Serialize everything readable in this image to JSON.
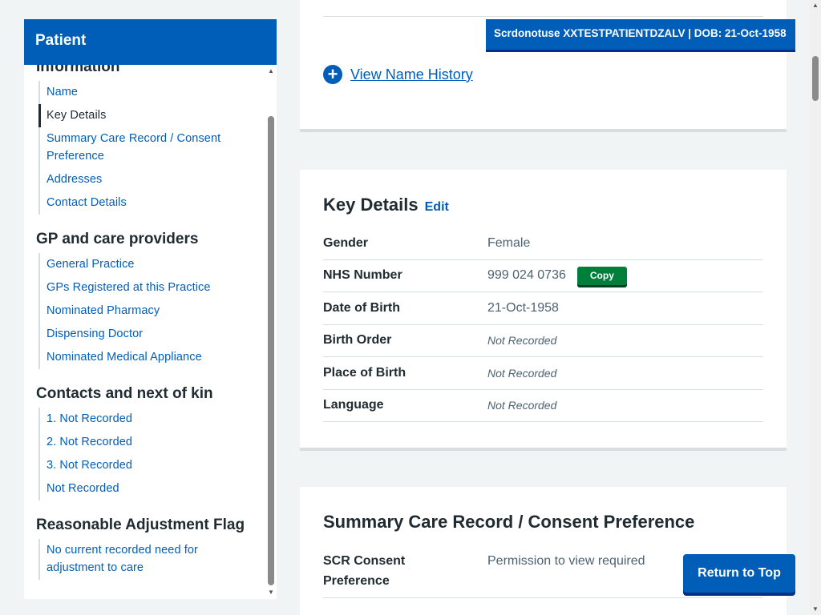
{
  "banner": {
    "text": "Scrdonotuse XXTESTPATIENTDZALV | DOB: 21-Oct-1958"
  },
  "sidebar": {
    "title": "Patient",
    "groups": [
      {
        "title": "Information",
        "items": [
          {
            "label": "Name",
            "active": false
          },
          {
            "label": "Key Details",
            "active": true
          },
          {
            "label": "Summary Care Record / Consent Preference",
            "active": false
          },
          {
            "label": "Addresses",
            "active": false
          },
          {
            "label": "Contact Details",
            "active": false
          }
        ]
      },
      {
        "title": "GP and care providers",
        "items": [
          {
            "label": "General Practice"
          },
          {
            "label": "GPs Registered at this Practice"
          },
          {
            "label": "Nominated Pharmacy"
          },
          {
            "label": "Dispensing Doctor"
          },
          {
            "label": "Nominated Medical Appliance"
          }
        ]
      },
      {
        "title": "Contacts and next of kin",
        "items": [
          {
            "label": "1. Not Recorded"
          },
          {
            "label": "2. Not Recorded"
          },
          {
            "label": "3. Not Recorded"
          },
          {
            "label": "Not Recorded"
          }
        ]
      },
      {
        "title": "Reasonable Adjustment Flag",
        "items": [
          {
            "label": "No current recorded need for adjustment to care"
          }
        ]
      }
    ]
  },
  "name_section": {
    "view_history_label": "View Name History"
  },
  "key_details": {
    "title": "Key Details",
    "edit_label": "Edit",
    "copy_label": "Copy",
    "rows": [
      {
        "label": "Gender",
        "value": "Female"
      },
      {
        "label": "NHS Number",
        "value": "999 024 0736"
      },
      {
        "label": "Date of Birth",
        "value": "21-Oct-1958"
      },
      {
        "label": "Birth Order",
        "value": "Not Recorded"
      },
      {
        "label": "Place of Birth",
        "value": "Not Recorded"
      },
      {
        "label": "Language",
        "value": "Not Recorded"
      }
    ]
  },
  "scr": {
    "title": "Summary Care Record / Consent Preference",
    "label": "SCR Consent Preference",
    "value": "Permission to view required"
  },
  "return_to_top_label": "Return to Top",
  "colors": {
    "primary": "#005eb8",
    "copy": "#007f3b",
    "text": "#212b32",
    "muted": "#4c6272"
  }
}
